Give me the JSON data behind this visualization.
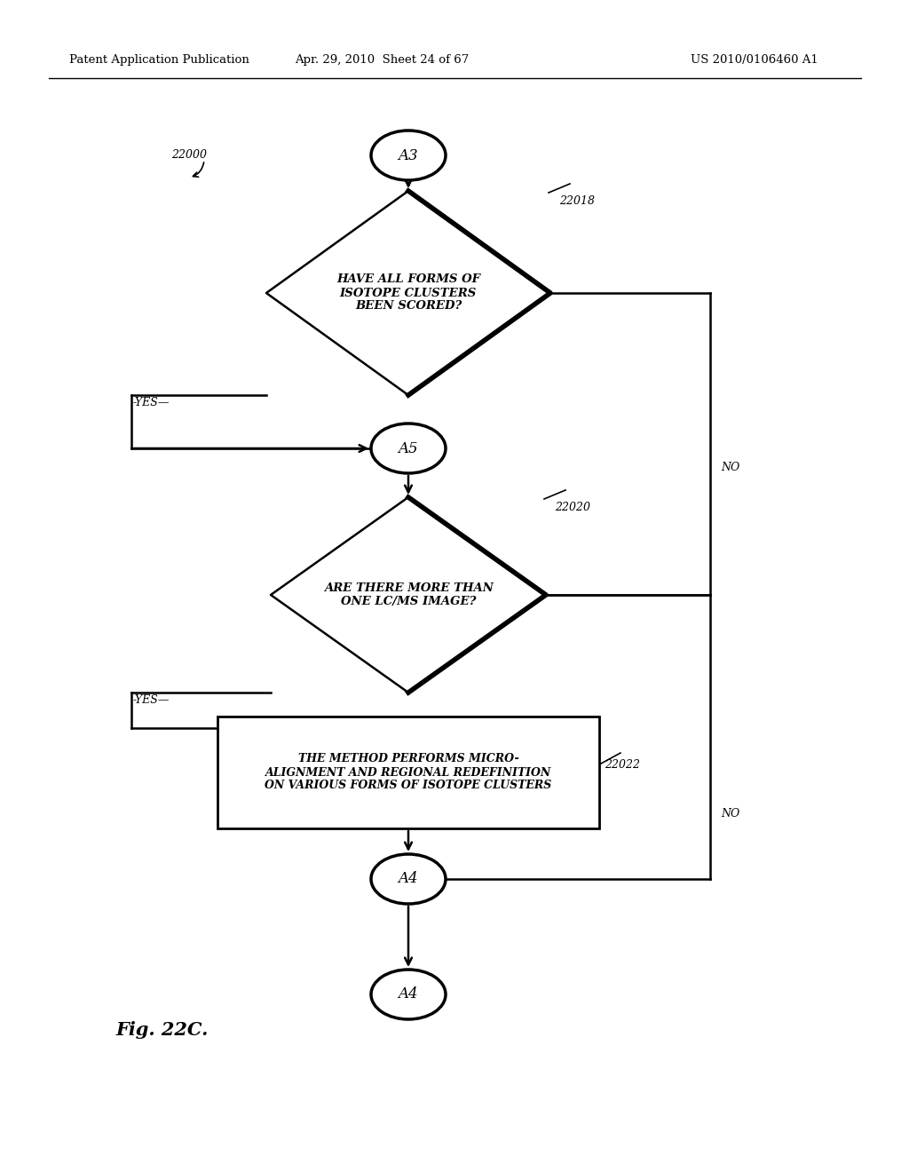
{
  "header_left": "Patent Application Publication",
  "header_mid": "Apr. 29, 2010  Sheet 24 of 67",
  "header_right": "US 2010/0106460 A1",
  "fig_label": "Fig. 22C.",
  "background_color": "#ffffff",
  "label_22000": "22000",
  "label_22018": "22018",
  "label_22020": "22020",
  "label_22022": "22022",
  "yes1": "-YES—",
  "yes2": "-YES—",
  "no1": "NO",
  "no2": "NO",
  "A3_label": "A3",
  "A5_label": "A5",
  "A4a_label": "A4",
  "A4b_label": "A4",
  "D1_text": "HAVE ALL FORMS OF\nISOTOPE CLUSTERS\nBEEN SCORED?",
  "D2_text": "ARE THERE MORE THAN\nONE LC/MS IMAGE?",
  "rect_text": "THE METHOD PERFORMS MICRO-\nALIGNMENT AND REGIONAL REDEFINITION\nON VARIOUS FORMS OF ISOTOPE CLUSTERS"
}
